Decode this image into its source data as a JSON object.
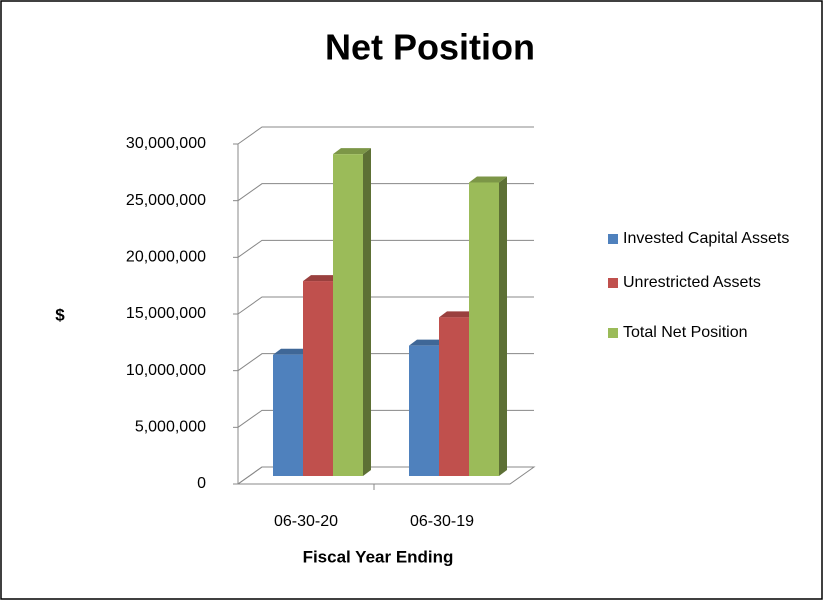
{
  "chart_data": {
    "type": "bar3d",
    "title": "Net Position",
    "categories": [
      "06-30-20",
      "06-30-19"
    ],
    "x_label": "Fiscal Year Ending",
    "y_label": "$",
    "series": [
      {
        "name": "Invested Capital Assets",
        "color": "#4f81bd",
        "values": [
          10700000,
          11500000
        ]
      },
      {
        "name": "Unrestricted Assets",
        "color": "#c0504d",
        "values": [
          17200000,
          14000000
        ]
      },
      {
        "name": "Total Net Position",
        "color": "#9bbb59",
        "values": [
          28400000,
          25900000
        ]
      }
    ],
    "ylim": [
      0,
      30000000
    ],
    "yticks": [
      0,
      {
        "value": 5000000,
        "label": "5,000,000"
      },
      {
        "value": 10000000,
        "label": "10,000,000"
      },
      {
        "value": 15000000,
        "label": "15,000,000"
      },
      {
        "value": 20000000,
        "label": "20,000,000"
      },
      {
        "value": 25000000,
        "label": "25,000,000"
      },
      {
        "value": 30000000,
        "label": "30,000,000"
      }
    ],
    "grid": true,
    "legend": "right"
  }
}
